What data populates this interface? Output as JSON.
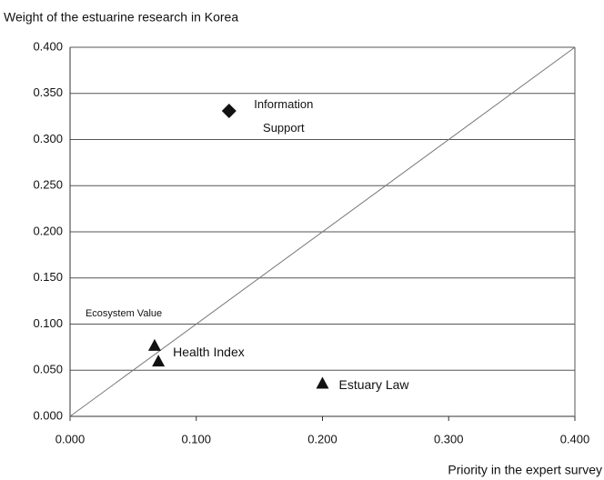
{
  "chart_data": {
    "type": "scatter",
    "y_label": "Weight of the estuarine research in Korea",
    "x_label": "Priority in the expert survey",
    "xlim": [
      0,
      0.4
    ],
    "ylim": [
      0,
      0.4
    ],
    "xticks": [
      {
        "value": 0,
        "label": "0.000"
      },
      {
        "value": 0.1,
        "label": "0.100"
      },
      {
        "value": 0.2,
        "label": "0.200"
      },
      {
        "value": 0.3,
        "label": "0.300"
      },
      {
        "value": 0.4,
        "label": "0.400"
      }
    ],
    "yticks": [
      {
        "value": 0,
        "label": "0.000"
      },
      {
        "value": 0.05,
        "label": "0.050"
      },
      {
        "value": 0.1,
        "label": "0.100"
      },
      {
        "value": 0.15,
        "label": "0.150"
      },
      {
        "value": 0.2,
        "label": "0.200"
      },
      {
        "value": 0.25,
        "label": "0.250"
      },
      {
        "value": 0.3,
        "label": "0.300"
      },
      {
        "value": 0.35,
        "label": "0.350"
      },
      {
        "value": 0.4,
        "label": "0.400"
      }
    ],
    "grid": true,
    "color": "#111111",
    "reference_line": "y=x",
    "points": [
      {
        "label": "Information Support",
        "x": 0.126,
        "y": 0.331,
        "marker": "diamond"
      },
      {
        "label": "Ecosystem Value",
        "x": 0.067,
        "y": 0.076,
        "marker": "triangle"
      },
      {
        "label": "Health Index",
        "x": 0.07,
        "y": 0.059,
        "marker": "triangle"
      },
      {
        "label": "Estuary Law",
        "x": 0.2,
        "y": 0.035,
        "marker": "triangle"
      }
    ]
  }
}
